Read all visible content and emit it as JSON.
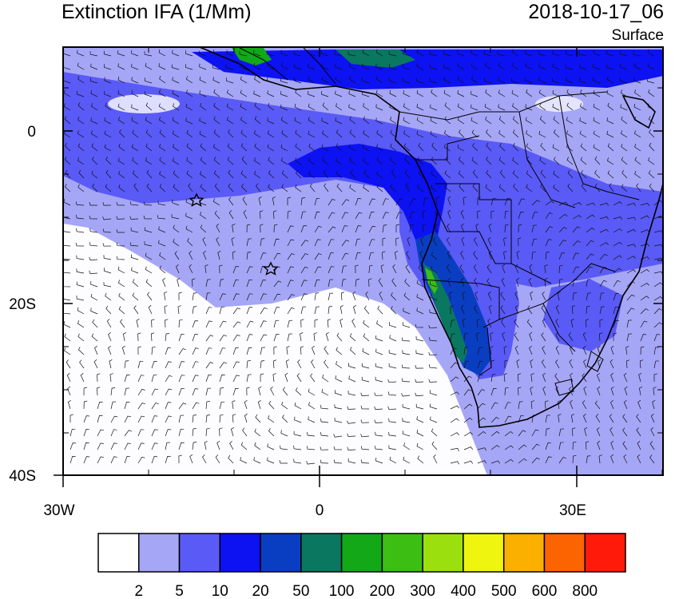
{
  "title": "Extinction IFA (1/Mm)",
  "datetime": "2018-10-17_06",
  "level": "Surface",
  "axes": {
    "y_ticks": [
      "0",
      "20S",
      "40S"
    ],
    "x_ticks": [
      "30W",
      "0",
      "30E"
    ]
  },
  "colorbar": {
    "labels": [
      "2",
      "5",
      "10",
      "20",
      "50",
      "100",
      "200",
      "300",
      "400",
      "500",
      "600",
      "800"
    ],
    "colors": [
      "#ffffff",
      "#a6a6f7",
      "#5a5af7",
      "#0c12f2",
      "#0a3ec2",
      "#0a7760",
      "#12a818",
      "#3cbf12",
      "#9be00e",
      "#f0f510",
      "#fbb000",
      "#fb6400",
      "#ff1a0a"
    ]
  },
  "map": {
    "region": "Southern Africa and South Atlantic",
    "markers": [
      "star",
      "star"
    ]
  }
}
